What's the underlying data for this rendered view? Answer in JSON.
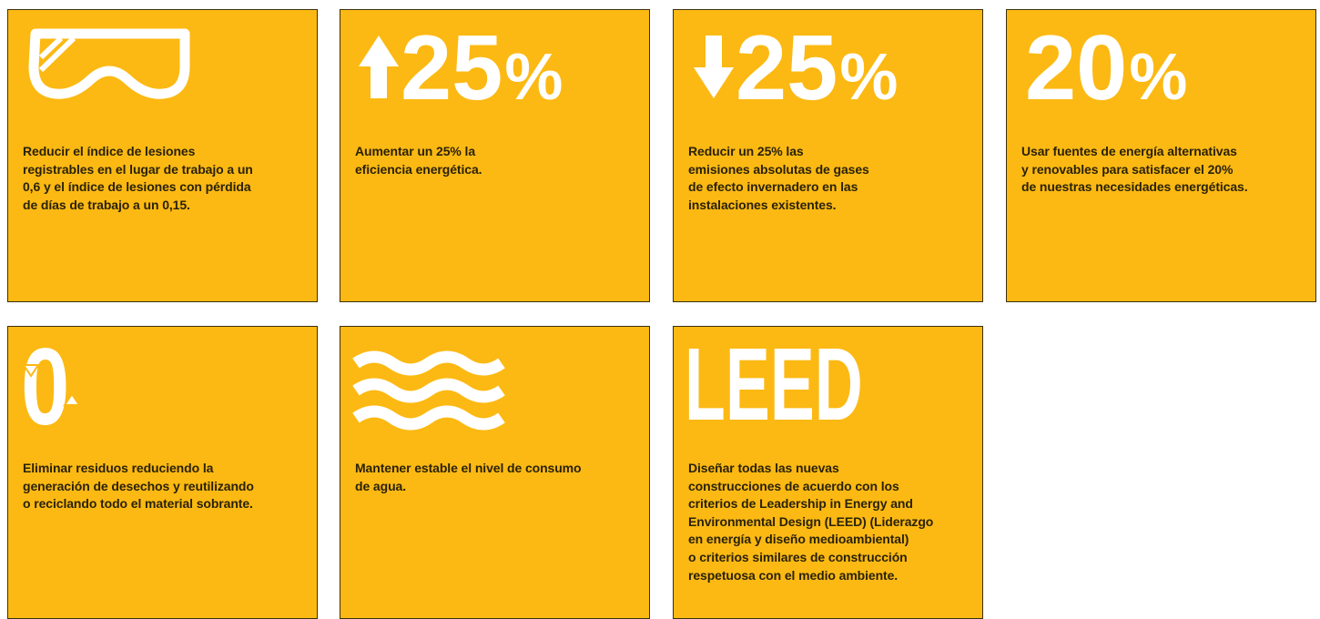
{
  "tiles": [
    {
      "lines": [
        "Reducir el índice de lesiones",
        "registrables en el lugar de trabajo a un",
        "0,6 y el índice de lesiones con pérdida",
        "de días de trabajo a un 0,15."
      ]
    },
    {
      "big": "25",
      "unit": "%",
      "lines": [
        "Aumentar un 25% la",
        "eficiencia energética."
      ]
    },
    {
      "big": "25",
      "unit": "%",
      "lines": [
        "Reducir un 25% las",
        "emisiones absolutas de gases",
        "de efecto invernadero en las",
        "instalaciones existentes."
      ]
    },
    {
      "big": "20",
      "unit": "%",
      "lines": [
        "Usar fuentes de energía alternativas",
        "y renovables para satisfacer el 20%",
        "de nuestras necesidades energéticas."
      ]
    },
    {
      "big": "0",
      "lines": [
        "Eliminar residuos reduciendo la",
        "generación de desechos y reutilizando",
        "o reciclando todo el material sobrante."
      ]
    },
    {
      "lines": [
        "Mantener estable el nivel de consumo",
        "de agua."
      ]
    },
    {
      "big": "LEED",
      "lines": [
        "Diseñar todas las nuevas",
        "construcciones de acuerdo con los",
        "criterios de Leadership in Energy and",
        "Environmental Design (LEED) (Liderazgo",
        "en energía y diseño medioambiental)",
        "o criterios similares de construcción",
        "respetuosa con el medio ambiente."
      ]
    }
  ]
}
